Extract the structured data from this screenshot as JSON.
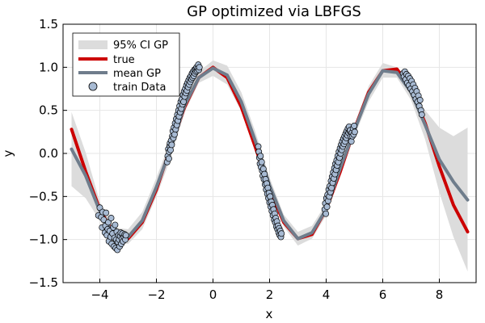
{
  "chart_data": {
    "type": "line",
    "title": "GP optimized via LBFGS",
    "xlabel": "x",
    "ylabel": "y",
    "xlim": [
      -5.3,
      9.3
    ],
    "ylim": [
      -1.5,
      1.5
    ],
    "xticks": [
      -4,
      -2,
      0,
      2,
      4,
      6,
      8
    ],
    "yticks": [
      -1.5,
      -1.0,
      -0.5,
      0.0,
      0.5,
      1.0,
      1.5
    ],
    "xtick_labels": [
      "−4",
      "−2",
      "0",
      "2",
      "4",
      "6",
      "8"
    ],
    "ytick_labels": [
      "−1.5",
      "−1.0",
      "−0.5",
      "0.0",
      "0.5",
      "1.0",
      "1.5"
    ],
    "grid": true,
    "legend_position": "top-left",
    "legend": [
      "95% CI GP",
      "true",
      "mean GP",
      "train Data"
    ],
    "colors": {
      "ci": "#dcdcdc",
      "true": "#cc0000",
      "mean": "#6f7d8c",
      "train_fill": "#a7bad3",
      "train_edge": "#000000"
    },
    "series": [
      {
        "name": "95% CI GP",
        "x": [
          -5.0,
          -4.5,
          -4.0,
          -3.5,
          -3.0,
          -2.5,
          -2.0,
          -1.5,
          -1.0,
          -0.5,
          0.0,
          0.5,
          1.0,
          1.5,
          2.0,
          2.5,
          3.0,
          3.5,
          4.0,
          4.5,
          5.0,
          5.5,
          6.0,
          6.5,
          7.0,
          7.5,
          8.0,
          8.5,
          9.0
        ],
        "lower": [
          -0.38,
          -0.52,
          -0.78,
          -1.03,
          -1.05,
          -0.88,
          -0.5,
          -0.06,
          0.48,
          0.82,
          0.9,
          0.8,
          0.49,
          0.04,
          -0.46,
          -0.85,
          -1.07,
          -0.99,
          -0.72,
          -0.24,
          0.2,
          0.6,
          0.88,
          0.88,
          0.62,
          0.16,
          -0.45,
          -0.97,
          -1.37
        ],
        "upper": [
          0.48,
          0.01,
          -0.56,
          -0.86,
          -0.88,
          -0.68,
          -0.28,
          0.15,
          0.64,
          0.95,
          1.08,
          1.02,
          0.71,
          0.25,
          -0.28,
          -0.71,
          -0.91,
          -0.84,
          -0.58,
          -0.1,
          0.34,
          0.78,
          1.05,
          1.0,
          0.8,
          0.5,
          0.3,
          0.2,
          0.3
        ]
      },
      {
        "name": "true",
        "x": [
          -5.0,
          -4.5,
          -4.0,
          -3.5,
          -3.0,
          -2.5,
          -2.0,
          -1.5,
          -1.0,
          -0.5,
          0.0,
          0.5,
          1.0,
          1.5,
          2.0,
          2.5,
          3.0,
          3.5,
          4.0,
          4.5,
          5.0,
          5.5,
          6.0,
          6.5,
          7.0,
          7.5,
          8.0,
          8.5,
          9.0
        ],
        "y": [
          0.28,
          -0.21,
          -0.65,
          -0.94,
          -0.99,
          -0.8,
          -0.42,
          0.07,
          0.54,
          0.88,
          1.0,
          0.88,
          0.54,
          0.07,
          -0.42,
          -0.8,
          -0.99,
          -0.94,
          -0.65,
          -0.21,
          0.28,
          0.71,
          0.96,
          0.98,
          0.75,
          0.35,
          -0.15,
          -0.6,
          -0.91
        ]
      },
      {
        "name": "mean GP",
        "x": [
          -5.0,
          -4.5,
          -4.0,
          -3.5,
          -3.0,
          -2.5,
          -2.0,
          -1.5,
          -1.0,
          -0.5,
          0.0,
          0.5,
          1.0,
          1.5,
          2.0,
          2.5,
          3.0,
          3.5,
          4.0,
          4.5,
          5.0,
          5.5,
          6.0,
          6.5,
          7.0,
          7.5,
          8.0,
          8.5,
          9.0
        ],
        "y": [
          0.05,
          -0.26,
          -0.67,
          -0.95,
          -0.97,
          -0.78,
          -0.39,
          0.05,
          0.56,
          0.88,
          0.99,
          0.91,
          0.6,
          0.14,
          -0.37,
          -0.78,
          -0.99,
          -0.92,
          -0.65,
          -0.17,
          0.27,
          0.69,
          0.96,
          0.94,
          0.71,
          0.33,
          -0.07,
          -0.33,
          -0.54
        ]
      },
      {
        "name": "train Data",
        "x": [
          -4.05,
          -4.0,
          -3.95,
          -3.92,
          -3.9,
          -3.86,
          -3.82,
          -3.8,
          -3.78,
          -3.75,
          -3.72,
          -3.7,
          -3.68,
          -3.65,
          -3.62,
          -3.6,
          -3.58,
          -3.55,
          -3.52,
          -3.5,
          -3.48,
          -3.46,
          -3.44,
          -3.42,
          -3.4,
          -3.38,
          -3.36,
          -3.34,
          -3.32,
          -3.3,
          -3.28,
          -3.26,
          -3.24,
          -3.22,
          -3.2,
          -3.18,
          -3.15,
          -3.12,
          -3.1,
          -3.08,
          -1.62,
          -1.6,
          -1.58,
          -1.56,
          -1.55,
          -1.53,
          -1.52,
          -1.5,
          -1.48,
          -1.46,
          -1.44,
          -1.42,
          -1.4,
          -1.38,
          -1.36,
          -1.34,
          -1.32,
          -1.3,
          -1.28,
          -1.26,
          -1.24,
          -1.22,
          -1.2,
          -1.18,
          -1.16,
          -1.14,
          -1.12,
          -1.1,
          -1.08,
          -1.06,
          -1.04,
          -1.02,
          -1.0,
          -0.98,
          -0.96,
          -0.94,
          -0.92,
          -0.9,
          -0.88,
          -0.86,
          -0.84,
          -0.82,
          -0.8,
          -0.78,
          -0.76,
          -0.74,
          -0.72,
          -0.7,
          -0.68,
          -0.66,
          -0.64,
          -0.62,
          -0.6,
          -0.58,
          -0.56,
          -0.54,
          -0.52,
          -0.5,
          -0.48,
          1.6,
          1.62,
          1.64,
          1.66,
          1.68,
          1.7,
          1.72,
          1.74,
          1.76,
          1.78,
          1.8,
          1.82,
          1.84,
          1.86,
          1.88,
          1.9,
          1.92,
          1.94,
          1.96,
          1.98,
          2.0,
          2.02,
          2.04,
          2.06,
          2.08,
          2.1,
          2.12,
          2.14,
          2.16,
          2.18,
          2.2,
          2.22,
          2.24,
          2.26,
          2.28,
          2.3,
          2.32,
          2.34,
          2.36,
          2.38,
          2.4,
          2.42,
          3.95,
          3.97,
          3.99,
          4.01,
          4.03,
          4.05,
          4.07,
          4.09,
          4.11,
          4.13,
          4.15,
          4.17,
          4.19,
          4.21,
          4.23,
          4.25,
          4.27,
          4.29,
          4.31,
          4.33,
          4.35,
          4.37,
          4.39,
          4.41,
          4.43,
          4.45,
          4.47,
          4.49,
          4.51,
          4.53,
          4.55,
          4.57,
          4.59,
          4.61,
          4.63,
          4.65,
          4.67,
          4.69,
          4.71,
          4.73,
          4.75,
          4.77,
          4.79,
          4.81,
          4.83,
          4.85,
          4.87,
          4.89,
          4.91,
          4.93,
          4.95,
          4.97,
          4.99,
          5.01,
          6.72,
          6.75,
          6.78,
          6.81,
          6.84,
          6.87,
          6.9,
          6.93,
          6.96,
          6.99,
          7.02,
          7.05,
          7.08,
          7.11,
          7.14,
          7.17,
          7.2,
          7.23,
          7.26,
          7.29,
          7.32,
          7.35,
          7.38
        ],
        "y": [
          -0.72,
          -0.63,
          -0.74,
          -0.86,
          -0.68,
          -0.77,
          -0.92,
          -0.84,
          -0.69,
          -0.95,
          -0.88,
          -0.8,
          -1.02,
          -0.9,
          -0.97,
          -0.75,
          -1.05,
          -0.93,
          -0.86,
          -1.08,
          -0.98,
          -0.83,
          -1.1,
          -1.0,
          -0.91,
          -1.12,
          -1.03,
          -0.95,
          -1.0,
          -1.08,
          -0.96,
          -0.92,
          -1.05,
          -0.99,
          -0.93,
          -1.02,
          -0.97,
          -0.94,
          -1.0,
          -0.95,
          -0.1,
          -0.03,
          0.05,
          -0.06,
          0.02,
          0.09,
          0.12,
          0.04,
          0.15,
          0.1,
          0.2,
          0.26,
          0.18,
          0.3,
          0.22,
          0.35,
          0.28,
          0.4,
          0.33,
          0.45,
          0.38,
          0.5,
          0.43,
          0.55,
          0.48,
          0.6,
          0.52,
          0.63,
          0.57,
          0.68,
          0.6,
          0.72,
          0.66,
          0.75,
          0.7,
          0.79,
          0.73,
          0.82,
          0.77,
          0.85,
          0.8,
          0.88,
          0.83,
          0.9,
          0.86,
          0.93,
          0.88,
          0.95,
          0.9,
          0.97,
          0.93,
          0.98,
          0.95,
          1.0,
          0.96,
          0.99,
          1.03,
          0.97,
          1.0,
          0.08,
          0.02,
          -0.05,
          -0.12,
          -0.03,
          -0.16,
          -0.1,
          -0.2,
          -0.26,
          -0.18,
          -0.3,
          -0.24,
          -0.36,
          -0.3,
          -0.42,
          -0.35,
          -0.47,
          -0.4,
          -0.52,
          -0.46,
          -0.57,
          -0.5,
          -0.62,
          -0.56,
          -0.67,
          -0.6,
          -0.72,
          -0.65,
          -0.77,
          -0.7,
          -0.8,
          -0.75,
          -0.85,
          -0.79,
          -0.88,
          -0.84,
          -0.92,
          -0.87,
          -0.95,
          -0.9,
          -0.97,
          -0.93,
          -0.65,
          -0.58,
          -0.7,
          -0.52,
          -0.62,
          -0.48,
          -0.55,
          -0.42,
          -0.5,
          -0.38,
          -0.45,
          -0.32,
          -0.4,
          -0.27,
          -0.34,
          -0.22,
          -0.29,
          -0.17,
          -0.24,
          -0.12,
          -0.19,
          -0.08,
          -0.14,
          -0.03,
          -0.1,
          0.02,
          -0.05,
          0.06,
          0.0,
          0.1,
          0.04,
          0.14,
          0.08,
          0.17,
          0.11,
          0.2,
          0.14,
          0.23,
          0.18,
          0.26,
          0.21,
          0.29,
          0.24,
          0.31,
          0.26,
          0.27,
          0.2,
          0.14,
          0.24,
          0.2,
          0.29,
          0.22,
          0.32,
          0.25,
          0.93,
          0.89,
          0.95,
          0.86,
          0.92,
          0.82,
          0.9,
          0.79,
          0.87,
          0.75,
          0.84,
          0.72,
          0.8,
          0.68,
          0.76,
          0.63,
          0.72,
          0.6,
          0.67,
          0.55,
          0.62,
          0.5,
          0.45
        ]
      }
    ]
  }
}
